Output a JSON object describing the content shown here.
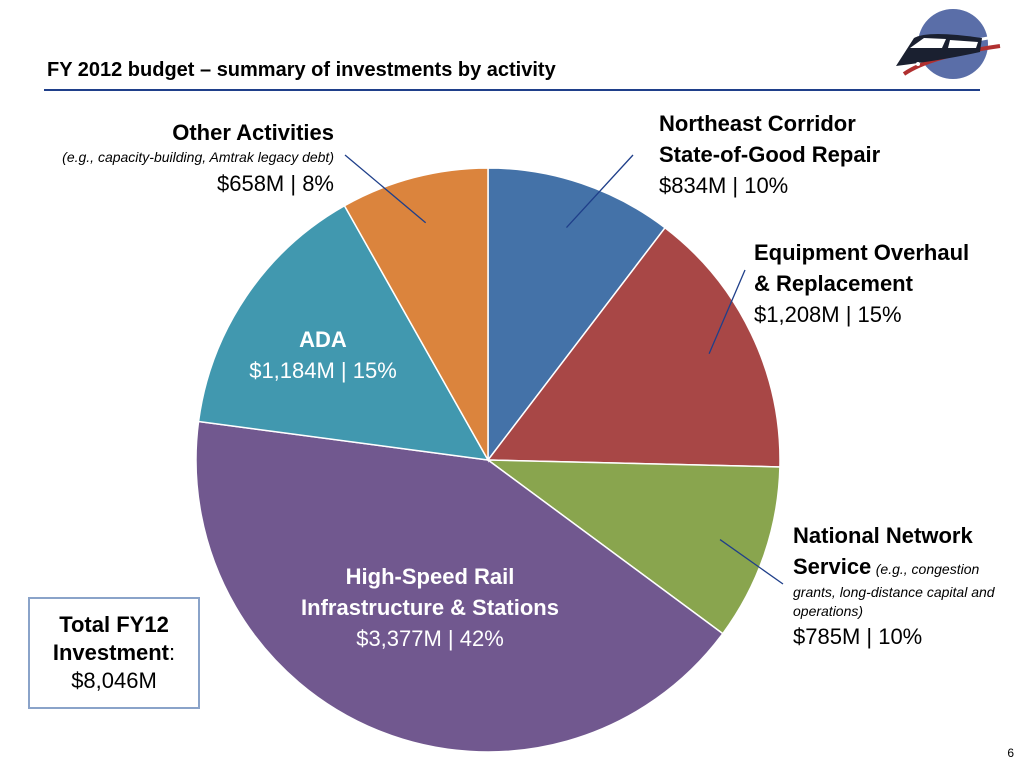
{
  "slide": {
    "title": "FY 2012 budget – summary of investments by activity",
    "page_number": "6"
  },
  "total": {
    "label_line1": "Total FY12",
    "label_line2": "Investment",
    "label_colon": ":",
    "value": "$8,046M"
  },
  "labels": {
    "nec": {
      "name1": "Northeast Corridor",
      "name2": "State-of-Good Repair",
      "amount": "$834M  |  10%"
    },
    "equip": {
      "name1": "Equipment Overhaul",
      "name2": "& Replacement",
      "amount": "$1,208M  |  15%"
    },
    "national": {
      "name1": "National Network",
      "name2": "Service",
      "note_inline": "(e.g., congestion",
      "note_rest": "grants, long-distance capital and operations)",
      "amount": "$785M  |  10%"
    },
    "hsr": {
      "name1": "High-Speed Rail",
      "name2": "Infrastructure & Stations",
      "amount": "$3,377M  |  42%"
    },
    "ada": {
      "name1": "ADA",
      "amount": "$1,184M  |  15%"
    },
    "other": {
      "name1": "Other Activities",
      "note": "(e.g., capacity-building, Amtrak legacy debt)",
      "amount": "$658M  |  8%"
    }
  },
  "chart_data": {
    "type": "pie",
    "title": "FY 2012 budget – summary of investments by activity",
    "unit": "$M",
    "slices": [
      {
        "label": "Northeast Corridor State-of-Good Repair",
        "value": 834,
        "percent": 10,
        "color": "#4472a8"
      },
      {
        "label": "Equipment Overhaul & Replacement",
        "value": 1208,
        "percent": 15,
        "color": "#a84746"
      },
      {
        "label": "National Network Service",
        "value": 785,
        "percent": 10,
        "color": "#89a54e"
      },
      {
        "label": "High-Speed Rail Infrastructure & Stations",
        "value": 3377,
        "percent": 42,
        "color": "#71588f"
      },
      {
        "label": "ADA",
        "value": 1184,
        "percent": 15,
        "color": "#4198af"
      },
      {
        "label": "Other Activities",
        "value": 658,
        "percent": 8,
        "color": "#db843d"
      }
    ],
    "total": 8046,
    "start": "12 o'clock",
    "direction": "clockwise",
    "legend": "none (direct labels)"
  }
}
